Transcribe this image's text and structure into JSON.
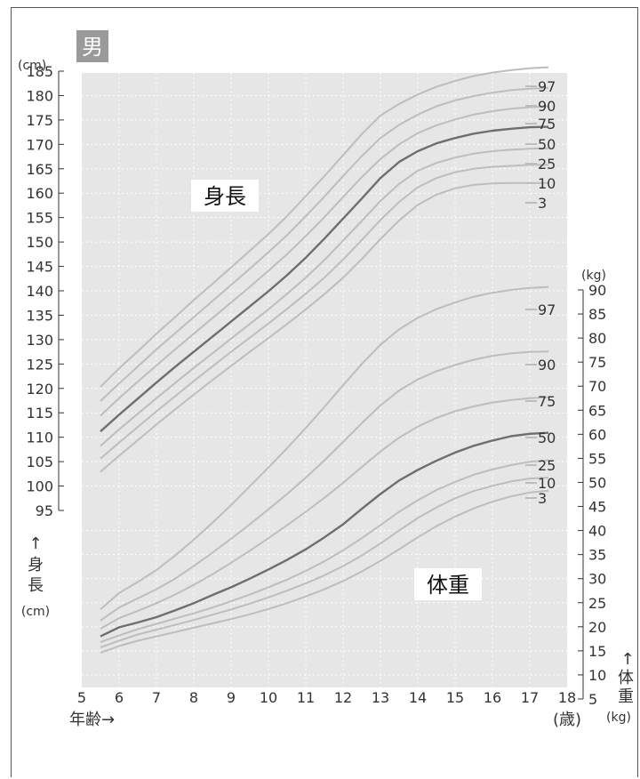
{
  "chart_data": {
    "type": "line",
    "gender_badge": "男",
    "x_axis": {
      "label": "年齢→",
      "unit": "(歳)",
      "range": [
        5,
        18
      ],
      "ticks": [
        "5",
        "6",
        "7",
        "8",
        "9",
        "10",
        "11",
        "12",
        "13",
        "14",
        "15",
        "16",
        "17",
        "18"
      ]
    },
    "height_axis": {
      "unit": "(cm)",
      "arrow": "↑",
      "label_chars": [
        "身",
        "長"
      ],
      "label_unit": "(cm)",
      "range": [
        95,
        185
      ],
      "ticks": [
        "95",
        "100",
        "105",
        "110",
        "115",
        "120",
        "125",
        "130",
        "135",
        "140",
        "145",
        "150",
        "155",
        "160",
        "165",
        "170",
        "175",
        "180",
        "185"
      ]
    },
    "weight_axis": {
      "unit": "(kg)",
      "arrow": "↑",
      "label_chars": [
        "体",
        "重"
      ],
      "label_unit": "(kg)",
      "range": [
        5,
        90
      ],
      "ticks": [
        "5",
        "10",
        "15",
        "20",
        "25",
        "30",
        "35",
        "40",
        "45",
        "50",
        "55",
        "60",
        "65",
        "70",
        "75",
        "80",
        "85",
        "90"
      ]
    },
    "height_title": "身長",
    "weight_title": "体重",
    "grid": true,
    "colors": {
      "plot_bg": "#e6e6e6",
      "curve": "#bdbdbd",
      "median": "#6e6e6e",
      "badge": "#9a9a9a",
      "grid": "#ffffff"
    },
    "x": [
      5.5,
      6,
      6.5,
      7,
      7.5,
      8,
      8.5,
      9,
      9.5,
      10,
      10.5,
      11,
      11.5,
      12,
      12.5,
      13,
      13.5,
      14,
      14.5,
      15,
      15.5,
      16,
      16.5,
      17,
      17.5
    ],
    "height_series": [
      {
        "name": "97",
        "values": [
          120.3,
          124.1,
          127.6,
          131.2,
          134.6,
          138.1,
          141.4,
          144.8,
          148.2,
          151.6,
          155.3,
          159.4,
          163.5,
          167.8,
          172.1,
          175.9,
          178.3,
          180.2,
          181.8,
          183.0,
          184.0,
          184.7,
          185.2,
          185.6,
          185.8
        ]
      },
      {
        "name": "90",
        "values": [
          117.4,
          121.0,
          124.5,
          128.0,
          131.3,
          134.6,
          137.9,
          141.2,
          144.5,
          147.9,
          151.4,
          155.3,
          159.3,
          163.5,
          167.6,
          171.3,
          174.0,
          176.1,
          177.8,
          179.0,
          179.9,
          180.6,
          181.1,
          181.4,
          181.6
        ]
      },
      {
        "name": "75",
        "values": [
          114.4,
          118.0,
          121.4,
          124.7,
          128.0,
          131.2,
          134.4,
          137.6,
          140.8,
          144.1,
          147.5,
          151.2,
          155.1,
          159.2,
          163.3,
          167.0,
          170.0,
          172.3,
          173.9,
          175.1,
          176.1,
          176.8,
          177.3,
          177.6,
          177.8
        ]
      },
      {
        "name": "50",
        "values": [
          111.2,
          114.6,
          117.9,
          121.2,
          124.4,
          127.5,
          130.6,
          133.7,
          136.8,
          139.9,
          143.2,
          146.8,
          150.7,
          154.8,
          158.9,
          163.1,
          166.4,
          168.6,
          170.2,
          171.3,
          172.2,
          172.8,
          173.2,
          173.5,
          173.6
        ]
      },
      {
        "name": "25",
        "values": [
          108.2,
          111.6,
          114.8,
          118.0,
          121.1,
          124.2,
          127.2,
          130.2,
          133.2,
          136.2,
          139.4,
          142.7,
          146.3,
          150.3,
          154.3,
          158.4,
          161.9,
          164.6,
          166.2,
          167.3,
          168.1,
          168.6,
          168.9,
          169.1,
          169.2
        ]
      },
      {
        "name": "10",
        "values": [
          105.6,
          108.9,
          112.1,
          115.3,
          118.4,
          121.5,
          124.5,
          127.5,
          130.4,
          133.3,
          136.3,
          139.4,
          142.7,
          146.4,
          150.4,
          154.5,
          158.2,
          161.2,
          163.1,
          164.3,
          165.0,
          165.4,
          165.6,
          165.8,
          165.8
        ]
      },
      {
        "name": "3",
        "values": [
          102.9,
          106.2,
          109.4,
          112.6,
          115.7,
          118.7,
          121.7,
          124.6,
          127.5,
          130.3,
          133.2,
          136.2,
          139.3,
          142.7,
          146.5,
          150.6,
          154.4,
          157.6,
          159.7,
          161.0,
          161.7,
          162.0,
          162.1,
          162.1,
          162.1
        ]
      }
    ],
    "weight_series": [
      {
        "name": "97",
        "values": [
          23.6,
          27.0,
          29.3,
          31.8,
          34.8,
          38.1,
          41.6,
          45.3,
          49.2,
          53.1,
          57.1,
          61.3,
          65.7,
          70.2,
          74.6,
          78.6,
          81.8,
          84.2,
          86.0,
          87.4,
          88.6,
          89.4,
          90.0,
          90.4,
          90.6
        ]
      },
      {
        "name": "90",
        "values": [
          21.3,
          24.0,
          25.9,
          27.8,
          30.0,
          32.6,
          35.4,
          38.3,
          41.3,
          44.4,
          47.6,
          51.0,
          54.6,
          58.4,
          62.3,
          66.0,
          69.1,
          71.4,
          73.1,
          74.4,
          75.5,
          76.3,
          76.8,
          77.1,
          77.2
        ]
      },
      {
        "name": "75",
        "values": [
          19.6,
          21.8,
          23.3,
          24.9,
          26.7,
          28.7,
          30.9,
          33.3,
          35.8,
          38.4,
          41.1,
          43.9,
          46.8,
          49.9,
          53.2,
          56.4,
          59.3,
          61.6,
          63.4,
          64.8,
          65.8,
          66.6,
          67.1,
          67.5,
          67.7
        ]
      },
      {
        "name": "50",
        "values": [
          18.0,
          19.9,
          20.9,
          22.0,
          23.4,
          24.9,
          26.6,
          28.2,
          30.0,
          31.9,
          33.9,
          36.1,
          38.6,
          41.3,
          44.5,
          47.6,
          50.4,
          52.6,
          54.5,
          56.2,
          57.6,
          58.7,
          59.6,
          60.1,
          60.3
        ]
      },
      {
        "name": "25",
        "values": [
          16.8,
          18.2,
          19.5,
          20.6,
          21.7,
          22.8,
          24.0,
          25.3,
          26.7,
          28.2,
          29.8,
          31.6,
          33.6,
          35.9,
          38.4,
          41.1,
          43.9,
          46.3,
          48.4,
          50.1,
          51.6,
          52.7,
          53.6,
          54.3,
          54.6
        ]
      },
      {
        "name": "10",
        "values": [
          15.7,
          17.1,
          18.4,
          19.4,
          20.4,
          21.4,
          22.5,
          23.6,
          24.8,
          26.1,
          27.5,
          29.0,
          30.7,
          32.6,
          34.8,
          37.3,
          40.0,
          42.6,
          44.8,
          46.7,
          48.2,
          49.3,
          50.2,
          50.8,
          51.0
        ]
      },
      {
        "name": "3",
        "values": [
          14.6,
          16.0,
          17.1,
          18.0,
          18.9,
          19.8,
          20.7,
          21.6,
          22.6,
          23.7,
          24.9,
          26.3,
          27.8,
          29.5,
          31.5,
          33.7,
          36.1,
          38.6,
          40.9,
          42.9,
          44.6,
          46.0,
          47.1,
          47.9,
          48.3
        ]
      }
    ]
  }
}
